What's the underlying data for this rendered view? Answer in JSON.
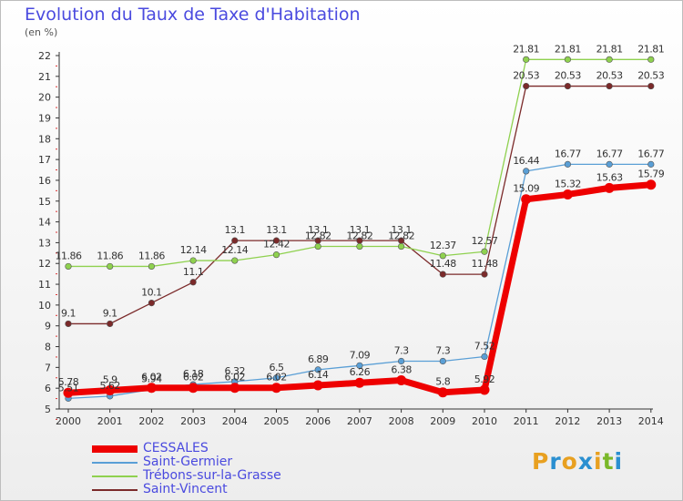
{
  "header": {
    "title": "Evolution du Taux de Taxe d'Habitation",
    "subtitle": "(en %)"
  },
  "logo": {
    "text": "Proxiti",
    "colors": [
      "#e8a020",
      "#2a8fd0",
      "#e8a020",
      "#2a8fd0",
      "#e8a020",
      "#7ab829",
      "#2a8fd0"
    ]
  },
  "chart_data": {
    "type": "line",
    "title": "Evolution du Taux de Taxe d'Habitation",
    "ylabel": "(en %)",
    "xlabel": "",
    "x": [
      "2000",
      "2001",
      "2002",
      "2003",
      "2004",
      "2005",
      "2006",
      "2007",
      "2008",
      "2009",
      "2010",
      "2011",
      "2012",
      "2013",
      "2014"
    ],
    "ylim": [
      5,
      22
    ],
    "yticks": [
      5,
      6,
      7,
      8,
      9,
      10,
      11,
      12,
      13,
      14,
      15,
      16,
      17,
      18,
      19,
      20,
      21,
      22
    ],
    "grid": false,
    "legend_position": "bottom-left",
    "series": [
      {
        "name": "CESSALES",
        "color": "#ee0000",
        "width": 7,
        "values": [
          5.78,
          5.9,
          6.02,
          6.02,
          6.02,
          6.02,
          6.14,
          6.26,
          6.38,
          5.8,
          5.92,
          15.09,
          15.32,
          15.63,
          15.79
        ],
        "labels": [
          "5.78",
          "5.9",
          "6.02",
          "6.02",
          "6.02",
          "6.02",
          "6.14",
          "6.26",
          "6.38",
          "5.8",
          "5.92",
          "15.09",
          "15.32",
          "15.63",
          "15.79"
        ]
      },
      {
        "name": "Saint-Germier",
        "color": "#5a9fd6",
        "width": 1.3,
        "values": [
          5.51,
          5.62,
          5.94,
          6.18,
          6.32,
          6.5,
          6.89,
          7.09,
          7.3,
          7.3,
          7.52,
          16.44,
          16.77,
          16.77,
          16.77
        ],
        "labels": [
          "5.51",
          "5.62",
          "5.94",
          "6.18",
          "6.32",
          "6.5",
          "6.89",
          "7.09",
          "7.3",
          "7.3",
          "7.52",
          "16.44",
          "16.77",
          "16.77",
          "16.77"
        ]
      },
      {
        "name": "Trébons-sur-la-Grasse",
        "color": "#8fd14f",
        "width": 1.3,
        "values": [
          11.86,
          11.86,
          11.86,
          12.14,
          12.14,
          12.42,
          12.82,
          12.82,
          12.82,
          12.37,
          12.57,
          21.81,
          21.81,
          21.81,
          21.81
        ],
        "labels": [
          "11.86",
          "11.86",
          "11.86",
          "12.14",
          "12.14",
          "12.42",
          "12.82",
          "12.82",
          "12.82",
          "12.37",
          "12.57",
          "21.81",
          "21.81",
          "21.81",
          "21.81"
        ]
      },
      {
        "name": "Saint-Vincent",
        "color": "#7b2a2a",
        "width": 1.3,
        "values": [
          9.1,
          9.1,
          10.1,
          11.1,
          13.1,
          13.1,
          13.1,
          13.1,
          13.1,
          11.48,
          11.48,
          20.53,
          20.53,
          20.53,
          20.53
        ],
        "labels": [
          "9.1",
          "9.1",
          "10.1",
          "11.1",
          "13.1",
          "13.1",
          "13.1",
          "13.1",
          "13.1",
          "11.48",
          "11.48",
          "20.53",
          "20.53",
          "20.53",
          "20.53"
        ]
      }
    ]
  }
}
